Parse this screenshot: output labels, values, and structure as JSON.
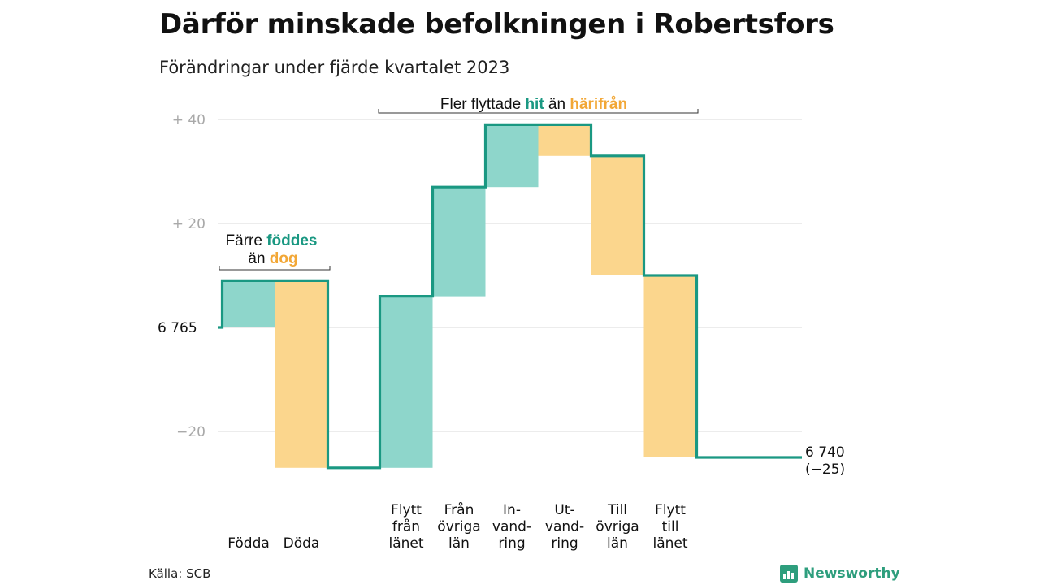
{
  "title": "Därför minskade befolkningen i Robertsfors",
  "subtitle": "Förändringar under fjärde kvartalet 2023",
  "source": "Källa: SCB",
  "brand": "Newsworthy",
  "colors": {
    "increase": "#8ed6cb",
    "decrease": "#fbd68d",
    "line": "#1a9882",
    "increase_text": "#1a9882",
    "decrease_text": "#f2a736",
    "grid": "#d9d9d9"
  },
  "chart_data": {
    "type": "bar",
    "variant": "waterfall",
    "start": {
      "value": 6765,
      "label": "6 765"
    },
    "end": {
      "value": 6740,
      "label": "6 740",
      "change_label": "(−25)"
    },
    "yticks": [
      {
        "value": 40,
        "label": "+  40"
      },
      {
        "value": 20,
        "label": "+  20"
      },
      {
        "value": -20,
        "label": "−20"
      }
    ],
    "ylim": [
      -27,
      40
    ],
    "steps": [
      {
        "label": [
          "Födda"
        ],
        "change": 9,
        "direction": "in"
      },
      {
        "label": [
          "Döda"
        ],
        "change": -36,
        "direction": "out"
      },
      {
        "label": [
          "Flytt",
          "från",
          "länet"
        ],
        "change": 33,
        "direction": "in"
      },
      {
        "label": [
          "Från",
          "övriga",
          "län"
        ],
        "change": 21,
        "direction": "in"
      },
      {
        "label": [
          "In-",
          "vand-",
          "ring"
        ],
        "change": 12,
        "direction": "in"
      },
      {
        "label": [
          "Ut-",
          "vand-",
          "ring"
        ],
        "change": -6,
        "direction": "out"
      },
      {
        "label": [
          "Till",
          "övriga",
          "län"
        ],
        "change": -23,
        "direction": "out"
      },
      {
        "label": [
          "Flytt",
          "till",
          "länet"
        ],
        "change": -35,
        "direction": "out"
      }
    ],
    "annotations": [
      {
        "parts": [
          "Färre",
          "föddes",
          "än",
          "dog"
        ]
      },
      {
        "parts": [
          "Fler flyttade",
          "hit",
          "än",
          "härifrån"
        ]
      }
    ]
  }
}
